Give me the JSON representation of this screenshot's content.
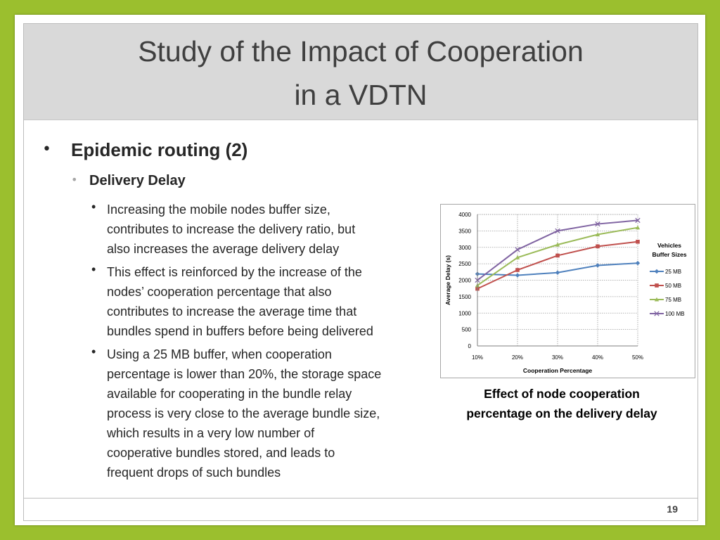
{
  "title": {
    "line1": "Study of the Impact of Cooperation",
    "line2": "in a VDTN"
  },
  "bullets": {
    "level1": "Epidemic routing (2)",
    "level2": "Delivery Delay",
    "level3": [
      {
        "lines": [
          "Increasing the mobile nodes buffer size,",
          "contributes to increase the delivery ratio, but",
          "also increases the average delivery delay"
        ]
      },
      {
        "lines": [
          "This effect is reinforced by the increase of the",
          "nodes’ cooperation percentage that also",
          "contributes to increase the average time that",
          "bundles spend in buffers before being delivered"
        ]
      },
      {
        "lines": [
          "Using a 25 MB buffer, when cooperation",
          "percentage is lower than 20%, the storage space",
          "available for cooperating in the bundle relay",
          "process is very close to the average bundle size,",
          "which results in a very low number of",
          "cooperative bundles stored, and leads to",
          "frequent drops of such bundles"
        ]
      }
    ]
  },
  "caption": {
    "line1": "Effect of node cooperation",
    "line2": "percentage on the delivery delay"
  },
  "page_number": "19",
  "chart_data": {
    "type": "line",
    "title": "",
    "xlabel": "Cooperation Percentage",
    "ylabel": "Average Delay (s)",
    "categories": [
      "10%",
      "20%",
      "30%",
      "40%",
      "50%"
    ],
    "ylim": [
      0,
      4000
    ],
    "yticks": [
      0,
      500,
      1000,
      1500,
      2000,
      2500,
      3000,
      3500,
      4000
    ],
    "grid": "dotted gridlines",
    "legend": {
      "title": [
        "Vehicles",
        "Buffer Sizes"
      ],
      "position": "right"
    },
    "series": [
      {
        "name": "25 MB",
        "color": "#4f81bd",
        "marker": "diamond",
        "values": [
          2190,
          2150,
          2230,
          2450,
          2520
        ]
      },
      {
        "name": "50 MB",
        "color": "#c0504d",
        "marker": "square",
        "values": [
          1740,
          2310,
          2750,
          3030,
          3170
        ]
      },
      {
        "name": "75 MB",
        "color": "#9bbb59",
        "marker": "triangle",
        "values": [
          1840,
          2690,
          3080,
          3390,
          3600
        ]
      },
      {
        "name": "100 MB",
        "color": "#8064a2",
        "marker": "x",
        "values": [
          2000,
          2930,
          3500,
          3710,
          3820
        ]
      }
    ]
  }
}
